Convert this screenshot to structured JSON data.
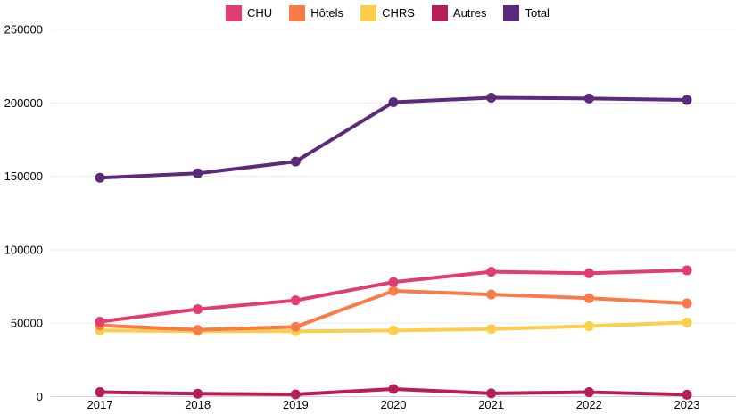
{
  "page": {
    "background": "#ffffff",
    "grid_color": "#ededed",
    "grid_color_faint": "#f5f5f5",
    "axis_zero_line_color": "#d4d4d4",
    "text_color": "#000000"
  },
  "legend": {
    "position": "top",
    "items": [
      {
        "label": "CHU",
        "color": "#e23d70"
      },
      {
        "label": "Hôtels",
        "color": "#fa7a48"
      },
      {
        "label": "CHRS",
        "color": "#fbce4b"
      },
      {
        "label": "Autres",
        "color": "#b71d56"
      },
      {
        "label": "Total",
        "color": "#5b2a7a"
      }
    ]
  },
  "chart_data": {
    "type": "line",
    "title": "",
    "xlabel": "",
    "ylabel": "",
    "x": [
      "2017",
      "2018",
      "2019",
      "2020",
      "2021",
      "2022",
      "2023"
    ],
    "series": [
      {
        "name": "CHU",
        "color": "#e23d70",
        "values": [
          51000,
          59500,
          65500,
          78000,
          85000,
          84000,
          86000
        ]
      },
      {
        "name": "Hôtels",
        "color": "#fa7a48",
        "values": [
          48500,
          45500,
          47500,
          72000,
          69500,
          67000,
          63500
        ]
      },
      {
        "name": "CHRS",
        "color": "#fbce4b",
        "values": [
          45000,
          44500,
          44500,
          45000,
          46000,
          48000,
          50500
        ]
      },
      {
        "name": "Autres",
        "color": "#b71d56",
        "values": [
          3000,
          2000,
          1500,
          5200,
          2200,
          3000,
          1300
        ]
      },
      {
        "name": "Total",
        "color": "#5b2a7a",
        "values": [
          149000,
          152000,
          160000,
          200500,
          203500,
          203000,
          202000
        ]
      }
    ],
    "ylim": [
      0,
      250000
    ],
    "yticks": [
      0,
      50000,
      100000,
      150000,
      200000,
      250000
    ],
    "grid": true,
    "legend_position": "top",
    "line_width": 4,
    "point_radius": 5.5
  }
}
